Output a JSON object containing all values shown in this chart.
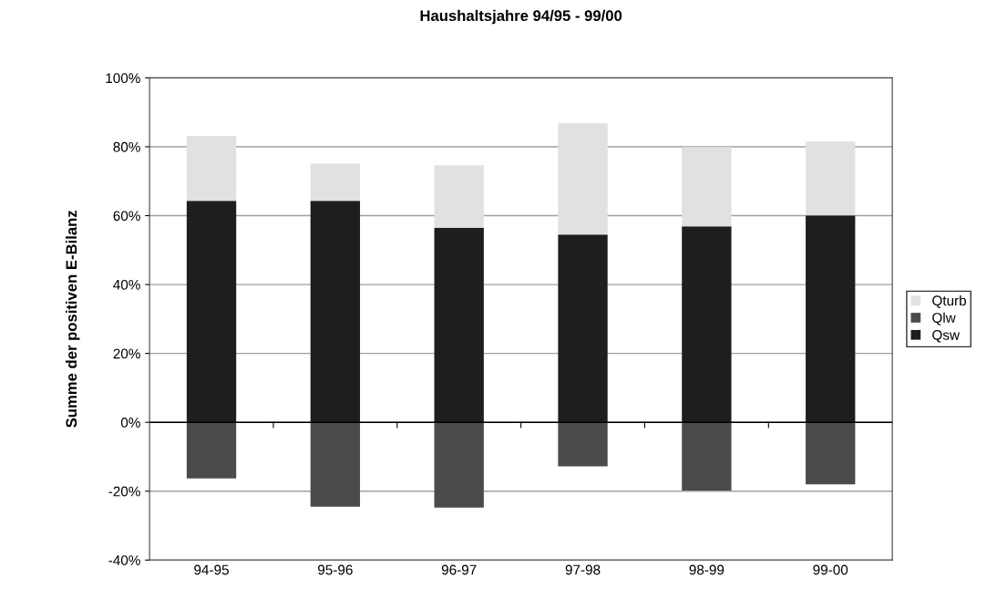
{
  "chart_data": {
    "type": "bar",
    "title": "Haushaltsjahre 94/95 - 99/00",
    "ylabel": "Summe der positiven E-Bilanz",
    "categories": [
      "94-95",
      "95-96",
      "96-97",
      "97-98",
      "98-99",
      "99-00"
    ],
    "stacked": true,
    "series": [
      {
        "name": "Qsw",
        "color": "#1e1e1e",
        "values": [
          64.3,
          64.3,
          56.5,
          54.5,
          56.9,
          60.1
        ]
      },
      {
        "name": "Qlw",
        "color": "#4b4b4b",
        "values": [
          -16.3,
          -24.5,
          -24.8,
          -12.8,
          -19.8,
          -18.0
        ]
      },
      {
        "name": "Qturb",
        "color": "#e1e1e1",
        "values": [
          18.9,
          10.8,
          18.1,
          32.3,
          23.0,
          21.4
        ]
      }
    ],
    "ylim": [
      -40,
      100
    ],
    "yticks": [
      {
        "value": -40,
        "label": "-40%"
      },
      {
        "value": -20,
        "label": "-20%"
      },
      {
        "value": 0,
        "label": "0%"
      },
      {
        "value": 20,
        "label": "20%"
      },
      {
        "value": 40,
        "label": "40%"
      },
      {
        "value": 60,
        "label": "60%"
      },
      {
        "value": 80,
        "label": "80%"
      },
      {
        "value": 100,
        "label": "100%"
      }
    ],
    "grid": "y",
    "legend": "right"
  }
}
